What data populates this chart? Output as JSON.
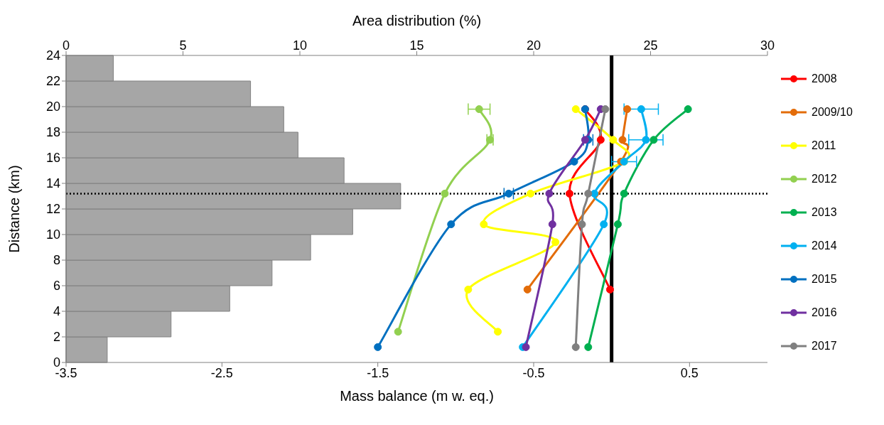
{
  "chart_data": [
    {
      "type": "histogram",
      "orientation": "horizontal",
      "xlabel": "Area distribution (%)",
      "ylabel": "Distance (km)",
      "xlim": [
        0,
        30
      ],
      "xticks": [
        0,
        5,
        10,
        15,
        20,
        25,
        30
      ],
      "ylim": [
        0,
        24
      ],
      "yticks": [
        0,
        2,
        4,
        6,
        8,
        10,
        12,
        14,
        16,
        18,
        20,
        22,
        24
      ],
      "color": "#a6a6a6",
      "bins": [
        0,
        2,
        4,
        6,
        8,
        10,
        12,
        14,
        16,
        18,
        20,
        22,
        24
      ],
      "values": [
        1.76,
        4.49,
        7.0,
        8.81,
        10.46,
        12.26,
        14.31,
        11.89,
        9.92,
        9.31,
        7.89,
        2.02
      ]
    },
    {
      "type": "line",
      "xlabel": "Mass balance (m w. eq.)",
      "xlim": [
        -3.5,
        1.0
      ],
      "xticks": [
        -3.5,
        -2.5,
        -1.5,
        -0.5,
        0.5
      ],
      "ylim": [
        0,
        24
      ],
      "yticks": [
        0,
        2,
        4,
        6,
        8,
        10,
        12,
        14,
        16,
        18,
        20,
        22,
        24
      ],
      "tick_labels": "x",
      "legend": "right",
      "marker": "circle",
      "line_style": "solid",
      "ref_lines": [
        {
          "axis": "x",
          "value": 0,
          "color": "#000000",
          "line_style": "solid"
        },
        {
          "axis": "y",
          "value": 13.2,
          "color": "#000000",
          "line_style": "dotted"
        }
      ],
      "series": [
        {
          "name": "2008",
          "color": "#ff0000",
          "x": [
            -0.17,
            -0.07,
            -0.27,
            -0.01
          ],
          "values": [
            19.8,
            17.4,
            13.2,
            5.7
          ]
        },
        {
          "name": "2009/10",
          "color": "#e36c09",
          "x": [
            0.1,
            0.07,
            0.06,
            -0.54
          ],
          "values": [
            19.8,
            17.4,
            15.7,
            5.7
          ]
        },
        {
          "name": "2011",
          "color": "#ffff00",
          "x": [
            -0.23,
            0.01,
            0.08,
            -0.52,
            -0.82,
            -0.36,
            -0.92,
            -0.73
          ],
          "values": [
            19.8,
            17.4,
            15.7,
            13.2,
            10.8,
            9.4,
            5.7,
            2.4
          ]
        },
        {
          "name": "2012",
          "color": "#92d050",
          "x": [
            -0.85,
            -0.78,
            -1.07,
            -1.37
          ],
          "values": [
            19.8,
            17.4,
            13.2,
            2.4
          ],
          "xerrors": [
            0.07,
            0.02,
            null,
            null
          ]
        },
        {
          "name": "2013",
          "color": "#00b050",
          "x": [
            0.49,
            0.27,
            0.08,
            0.04,
            -0.15
          ],
          "values": [
            19.8,
            17.4,
            13.2,
            10.8,
            1.2
          ]
        },
        {
          "name": "2014",
          "color": "#00b0f0",
          "x": [
            0.19,
            0.22,
            0.08,
            -0.11,
            -0.05,
            -0.57
          ],
          "values": [
            19.8,
            17.4,
            15.7,
            13.2,
            10.8,
            1.2
          ],
          "xerrors": [
            0.11,
            0.11,
            0.08,
            null,
            null,
            null
          ]
        },
        {
          "name": "2015",
          "color": "#0070c0",
          "x": [
            -0.17,
            -0.15,
            -0.24,
            -0.66,
            -1.03,
            -1.5
          ],
          "values": [
            19.8,
            17.4,
            15.7,
            13.2,
            10.8,
            1.2
          ],
          "xerrors": [
            null,
            0.03,
            null,
            0.03,
            null,
            null
          ]
        },
        {
          "name": "2016",
          "color": "#7030a0",
          "x": [
            -0.07,
            -0.17,
            -0.4,
            -0.38,
            -0.55
          ],
          "values": [
            19.8,
            17.4,
            13.2,
            10.8,
            1.2
          ]
        },
        {
          "name": "2017",
          "color": "#808080",
          "x": [
            -0.04,
            -0.15,
            -0.19,
            -0.23
          ],
          "values": [
            19.8,
            13.2,
            10.8,
            1.2
          ]
        }
      ]
    }
  ]
}
